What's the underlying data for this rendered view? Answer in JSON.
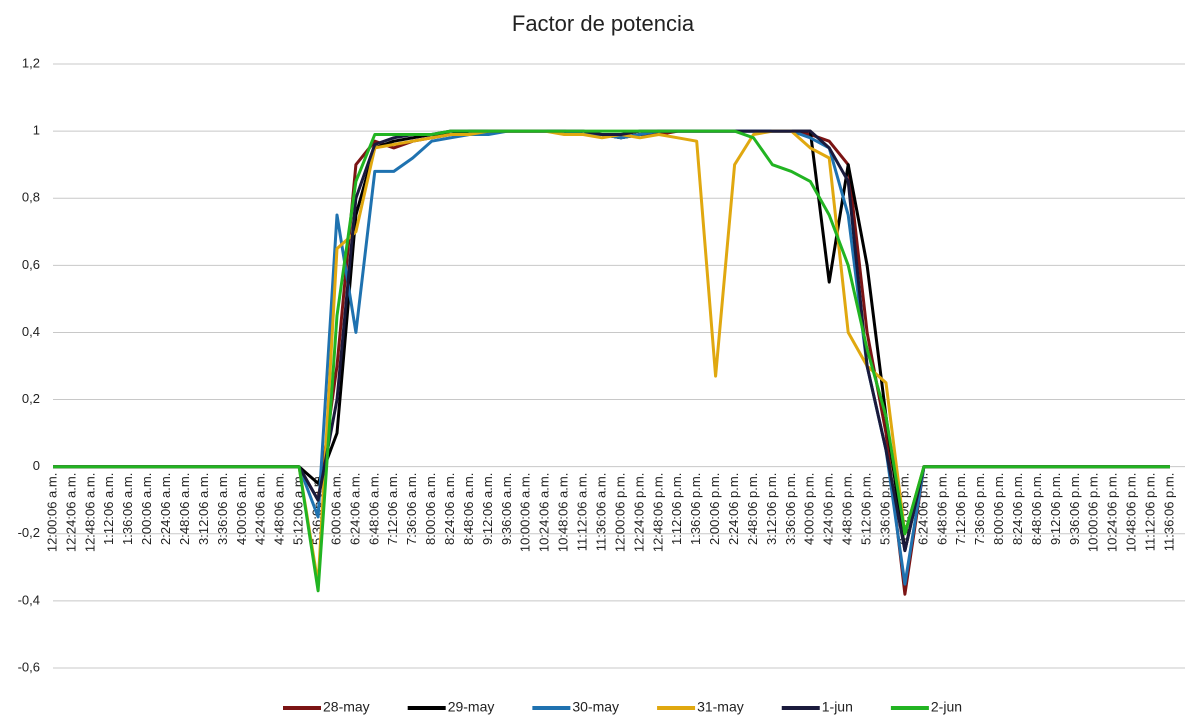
{
  "chart_data": {
    "type": "line",
    "title": "Factor de potencia",
    "categories": [
      "12:00:06 a.m.",
      "12:24:06 a.m.",
      "12:48:06 a.m.",
      "1:12:06 a.m.",
      "1:36:06 a.m.",
      "2:00:06 a.m.",
      "2:24:06 a.m.",
      "2:48:06 a.m.",
      "3:12:06 a.m.",
      "3:36:06 a.m.",
      "4:00:06 a.m.",
      "4:24:06 a.m.",
      "4:48:06 a.m.",
      "5:12:06 a.m.",
      "5:36:06 a.m.",
      "6:00:06 a.m.",
      "6:24:06 a.m.",
      "6:48:06 a.m.",
      "7:12:06 a.m.",
      "7:36:06 a.m.",
      "8:00:06 a.m.",
      "8:24:06 a.m.",
      "8:48:06 a.m.",
      "9:12:06 a.m.",
      "9:36:06 a.m.",
      "10:00:06 a.m.",
      "10:24:06 a.m.",
      "10:48:06 a.m.",
      "11:12:06 a.m.",
      "11:36:06 a.m.",
      "12:00:06 p.m.",
      "12:24:06 p.m.",
      "12:48:06 p.m.",
      "1:12:06 p.m.",
      "1:36:06 p.m.",
      "2:00:06 p.m.",
      "2:24:06 p.m.",
      "2:48:06 p.m.",
      "3:12:06 p.m.",
      "3:36:06 p.m.",
      "4:00:06 p.m.",
      "4:24:06 p.m.",
      "4:48:06 p.m.",
      "5:12:06 p.m.",
      "5:36:06 p.m.",
      "6:00:06 p.m.",
      "6:24:06 p.m.",
      "6:48:06 p.m.",
      "7:12:06 p.m.",
      "7:36:06 p.m.",
      "8:00:06 p.m.",
      "8:24:06 p.m.",
      "8:48:06 p.m.",
      "9:12:06 p.m.",
      "9:36:06 p.m.",
      "10:00:06 p.m.",
      "10:24:06 p.m.",
      "10:48:06 p.m.",
      "11:12:06 p.m.",
      "11:36:06 p.m."
    ],
    "series": [
      {
        "name": "28-may",
        "color": "#7b1414",
        "values": [
          0,
          0,
          0,
          0,
          0,
          0,
          0,
          0,
          0,
          0,
          0,
          0,
          0,
          0,
          -0.1,
          0.3,
          0.9,
          0.97,
          0.95,
          0.97,
          0.98,
          0.99,
          0.99,
          1,
          1,
          1,
          1,
          1,
          0.99,
          0.99,
          0.98,
          0.99,
          0.99,
          1,
          1,
          1,
          1,
          1,
          1,
          1,
          0.99,
          0.97,
          0.9,
          0.4,
          0.1,
          -0.38,
          0,
          0,
          0,
          0,
          0,
          0,
          0,
          0,
          0,
          0,
          0,
          0,
          0,
          0
        ]
      },
      {
        "name": "29-may",
        "color": "#000000",
        "values": [
          0,
          0,
          0,
          0,
          0,
          0,
          0,
          0,
          0,
          0,
          0,
          0,
          0,
          0,
          -0.05,
          0.1,
          0.75,
          0.95,
          0.97,
          0.98,
          0.99,
          0.99,
          1,
          1,
          1,
          1,
          1,
          1,
          0.99,
          0.99,
          0.98,
          0.99,
          1,
          1,
          1,
          1,
          1,
          1,
          1,
          1,
          1,
          0.55,
          0.9,
          0.6,
          0.15,
          -0.25,
          0,
          0,
          0,
          0,
          0,
          0,
          0,
          0,
          0,
          0,
          0,
          0,
          0,
          0
        ]
      },
      {
        "name": "30-may",
        "color": "#1f72b0",
        "values": [
          0,
          0,
          0,
          0,
          0,
          0,
          0,
          0,
          0,
          0,
          0,
          0,
          0,
          0,
          -0.15,
          0.75,
          0.4,
          0.88,
          0.88,
          0.92,
          0.97,
          0.98,
          0.99,
          0.99,
          1,
          1,
          1,
          1,
          0.99,
          0.99,
          0.98,
          0.99,
          1,
          1,
          1,
          1,
          1,
          1,
          1,
          1,
          0.98,
          0.95,
          0.75,
          0.3,
          0.05,
          -0.35,
          0,
          0,
          0,
          0,
          0,
          0,
          0,
          0,
          0,
          0,
          0,
          0,
          0,
          0
        ]
      },
      {
        "name": "31-may",
        "color": "#e0a810",
        "values": [
          0,
          0,
          0,
          0,
          0,
          0,
          0,
          0,
          0,
          0,
          0,
          0,
          0,
          0,
          -0.35,
          0.65,
          0.7,
          0.95,
          0.96,
          0.97,
          0.98,
          0.99,
          0.99,
          1,
          1,
          1,
          1,
          0.99,
          0.99,
          0.98,
          0.99,
          0.98,
          0.99,
          0.98,
          0.97,
          0.27,
          0.9,
          0.99,
          1,
          1,
          0.95,
          0.92,
          0.4,
          0.3,
          0.25,
          -0.2,
          0,
          0,
          0,
          0,
          0,
          0,
          0,
          0,
          0,
          0,
          0,
          0,
          0,
          0
        ]
      },
      {
        "name": "1-jun",
        "color": "#1a1a3c",
        "values": [
          0,
          0,
          0,
          0,
          0,
          0,
          0,
          0,
          0,
          0,
          0,
          0,
          0,
          0,
          -0.1,
          0.2,
          0.8,
          0.96,
          0.98,
          0.99,
          0.99,
          1,
          1,
          1,
          1,
          1,
          1,
          1,
          1,
          0.99,
          0.99,
          1,
          1,
          1,
          1,
          1,
          1,
          1,
          1,
          1,
          1,
          0.95,
          0.85,
          0.3,
          0.05,
          -0.25,
          0,
          0,
          0,
          0,
          0,
          0,
          0,
          0,
          0,
          0,
          0,
          0,
          0,
          0
        ]
      },
      {
        "name": "2-jun",
        "color": "#22b422",
        "values": [
          0,
          0,
          0,
          0,
          0,
          0,
          0,
          0,
          0,
          0,
          0,
          0,
          0,
          0,
          -0.37,
          0.45,
          0.85,
          0.99,
          0.99,
          0.99,
          0.99,
          1,
          1,
          1,
          1,
          1,
          1,
          1,
          1,
          1,
          1,
          1,
          1,
          1,
          1,
          1,
          1,
          0.98,
          0.9,
          0.88,
          0.85,
          0.75,
          0.6,
          0.35,
          0.15,
          -0.2,
          0,
          0,
          0,
          0,
          0,
          0,
          0,
          0,
          0,
          0,
          0,
          0,
          0,
          0
        ]
      }
    ],
    "ylim": [
      -0.6,
      1.2
    ],
    "yticks": [
      {
        "value": -0.6,
        "label": "-0,6"
      },
      {
        "value": -0.4,
        "label": "-0,4"
      },
      {
        "value": -0.2,
        "label": "-0,2"
      },
      0,
      {
        "value": 0.2,
        "label": "0,2"
      },
      {
        "value": 0.4,
        "label": "0,4"
      },
      {
        "value": 0.6,
        "label": "0,6"
      },
      {
        "value": 0.8,
        "label": "0,8"
      },
      1,
      {
        "value": 1.2,
        "label": "1,2"
      }
    ],
    "grid": true,
    "legend": "bottom"
  }
}
